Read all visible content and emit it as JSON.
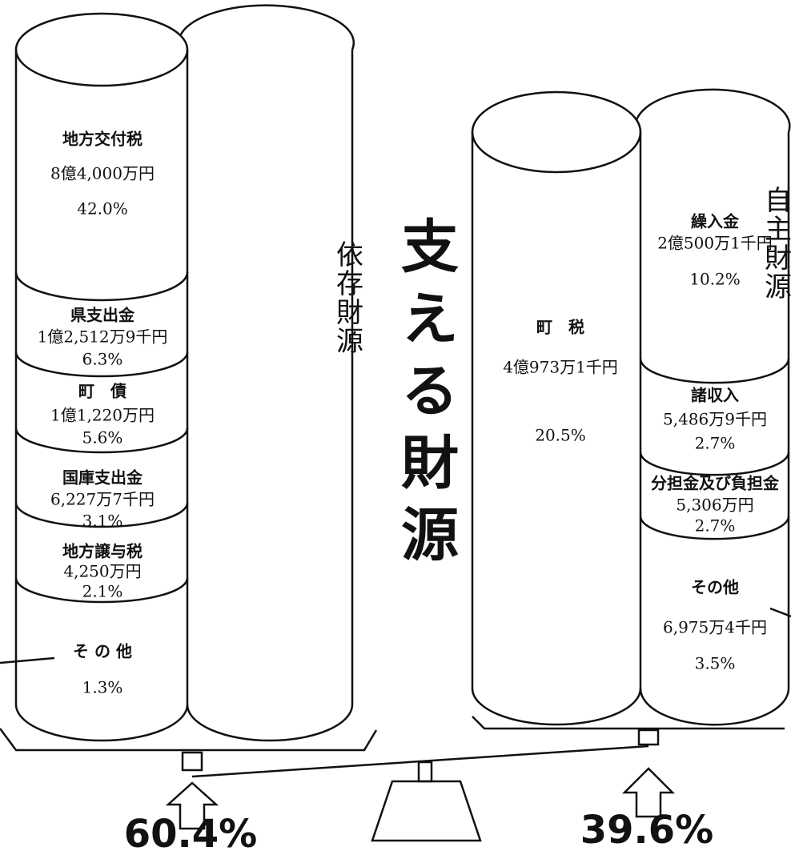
{
  "title": "支える財源",
  "dependent": {
    "label": "依存財源",
    "total": "60.4%",
    "items": [
      {
        "name": "地方交付税",
        "amount": "8億4,000万円",
        "percent": "42.0%"
      },
      {
        "name": "県支出金",
        "amount": "1億2,512万9千円",
        "percent": "6.3%"
      },
      {
        "name": "町　債",
        "amount": "1億1,220万円",
        "percent": "5.6%"
      },
      {
        "name": "国庫支出金",
        "amount": "6,227万7千円",
        "percent": "3.1%"
      },
      {
        "name": "地方譲与税",
        "amount": "4,250万円",
        "percent": "2.1%"
      },
      {
        "name": "そ の 他",
        "percent": "1.3%"
      }
    ]
  },
  "independent": {
    "label": "自主財源",
    "total": "39.6%",
    "items": [
      {
        "name": "町　税",
        "amount": "4億973万1千円",
        "percent": "20.5%"
      },
      {
        "name": "繰入金",
        "amount": "2億500万1千円",
        "percent": "10.2%"
      },
      {
        "name": "諸収入",
        "amount": "5,486万9千円",
        "percent": "2.7%"
      },
      {
        "name": "分担金及び負担金",
        "amount": "5,306万円",
        "percent": "2.7%"
      },
      {
        "name": "その他",
        "amount": "6,975万4千円",
        "percent": "3.5%"
      }
    ]
  }
}
